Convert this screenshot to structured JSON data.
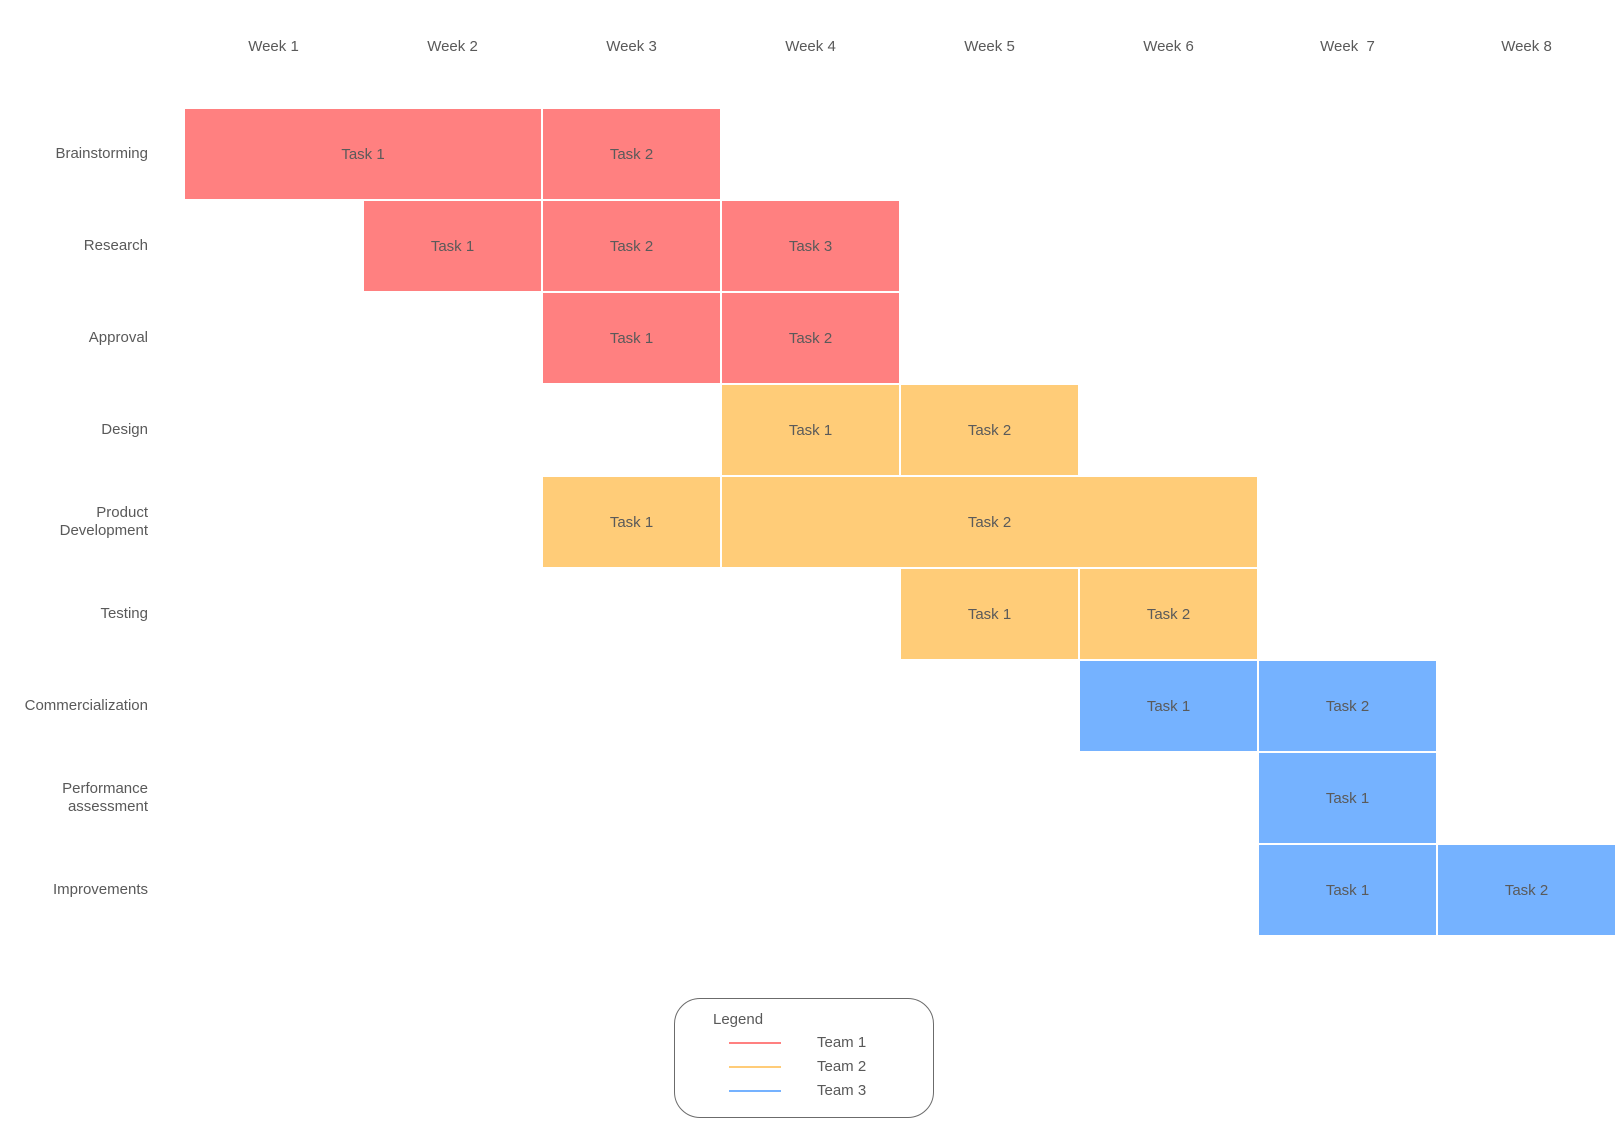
{
  "weeks": [
    "Week 1",
    "Week 2",
    "Week 3",
    "Week 4",
    "Week 5",
    "Week 6",
    "Week  7",
    "Week 8"
  ],
  "colors": {
    "team1": "#ff8080",
    "team2": "#ffcc78",
    "team3": "#75b2ff"
  },
  "rows": [
    {
      "label": "Brainstorming",
      "tasks": [
        {
          "name": "Task 1",
          "start_week": 1,
          "end_week": 2,
          "team": "team1"
        },
        {
          "name": "Task 2",
          "start_week": 3,
          "end_week": 3,
          "team": "team1"
        }
      ]
    },
    {
      "label": "Research",
      "tasks": [
        {
          "name": "Task 1",
          "start_week": 2,
          "end_week": 2,
          "team": "team1"
        },
        {
          "name": "Task 2",
          "start_week": 3,
          "end_week": 3,
          "team": "team1"
        },
        {
          "name": "Task 3",
          "start_week": 4,
          "end_week": 4,
          "team": "team1"
        }
      ]
    },
    {
      "label": "Approval",
      "tasks": [
        {
          "name": "Task 1",
          "start_week": 3,
          "end_week": 3,
          "team": "team1"
        },
        {
          "name": "Task 2",
          "start_week": 4,
          "end_week": 4,
          "team": "team1"
        }
      ]
    },
    {
      "label": "Design",
      "tasks": [
        {
          "name": "Task 1",
          "start_week": 4,
          "end_week": 4,
          "team": "team2"
        },
        {
          "name": "Task 2",
          "start_week": 5,
          "end_week": 5,
          "team": "team2"
        }
      ]
    },
    {
      "label": "Product\nDevelopment",
      "tasks": [
        {
          "name": "Task 1",
          "start_week": 3,
          "end_week": 3,
          "team": "team2"
        },
        {
          "name": "Task 2",
          "start_week": 4,
          "end_week": 6,
          "team": "team2"
        }
      ]
    },
    {
      "label": "Testing",
      "tasks": [
        {
          "name": "Task 1",
          "start_week": 5,
          "end_week": 5,
          "team": "team2"
        },
        {
          "name": "Task 2",
          "start_week": 6,
          "end_week": 6,
          "team": "team2"
        }
      ]
    },
    {
      "label": "Commercialization",
      "tasks": [
        {
          "name": "Task 1",
          "start_week": 6,
          "end_week": 6,
          "team": "team3"
        },
        {
          "name": "Task 2",
          "start_week": 7,
          "end_week": 7,
          "team": "team3"
        }
      ]
    },
    {
      "label": "Performance\nassessment",
      "tasks": [
        {
          "name": "Task 1",
          "start_week": 7,
          "end_week": 7,
          "team": "team3"
        }
      ]
    },
    {
      "label": "Improvements",
      "tasks": [
        {
          "name": "Task 1",
          "start_week": 7,
          "end_week": 7,
          "team": "team3"
        },
        {
          "name": "Task 2",
          "start_week": 8,
          "end_week": 8,
          "team": "team3"
        }
      ]
    }
  ],
  "legend": {
    "title": "Legend",
    "items": [
      {
        "label": "Team 1",
        "team": "team1"
      },
      {
        "label": "Team 2",
        "team": "team2"
      },
      {
        "label": "Team 3",
        "team": "team3"
      }
    ]
  }
}
